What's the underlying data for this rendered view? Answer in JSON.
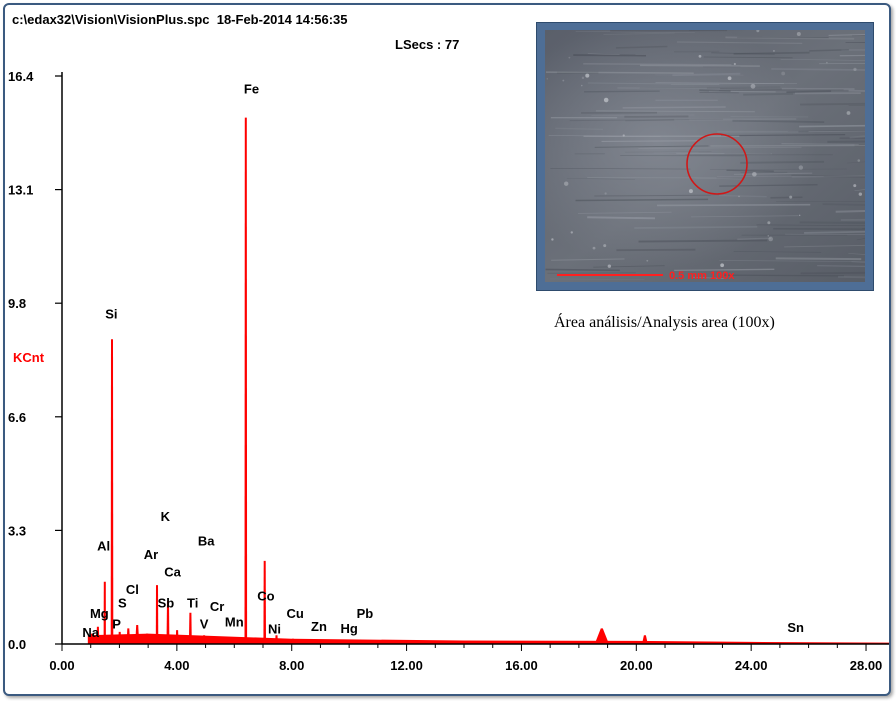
{
  "header": {
    "file_info": "c:\\edax32\\Vision\\VisionPlus.spc  18-Feb-2014 14:56:35",
    "lsecs": "LSecs : 77"
  },
  "inset": {
    "scale_text": "0.5 mm  100x",
    "caption": "Área análisis/Analysis area (100x)"
  },
  "colors": {
    "spectrum": "#ff0000",
    "frame": "#3b5a80",
    "axis": "#000000"
  },
  "chart_data": {
    "type": "bar",
    "ylabel": "KCnt",
    "xlim": [
      0,
      28.8
    ],
    "ylim": [
      0,
      16.4
    ],
    "y_ticks": [
      "0.0",
      "3.3",
      "6.6",
      "9.8",
      "13.1",
      "16.4"
    ],
    "x_ticks": [
      "0.00",
      "4.00",
      "8.00",
      "12.00",
      "16.00",
      "20.00",
      "24.00",
      "28.00"
    ],
    "peaks": [
      {
        "x": 1.04,
        "y": 0.3,
        "w": 0.05
      },
      {
        "x": 1.25,
        "y": 0.5,
        "w": 0.05
      },
      {
        "x": 1.49,
        "y": 1.8,
        "w": 0.04
      },
      {
        "x": 1.74,
        "y": 8.8,
        "w": 0.045
      },
      {
        "x": 2.01,
        "y": 0.35,
        "w": 0.05
      },
      {
        "x": 2.31,
        "y": 0.45,
        "w": 0.06
      },
      {
        "x": 2.62,
        "y": 0.55,
        "w": 0.07
      },
      {
        "x": 2.96,
        "y": 0.3,
        "w": 0.08
      },
      {
        "x": 3.31,
        "y": 1.7,
        "w": 0.045
      },
      {
        "x": 3.69,
        "y": 1.25,
        "w": 0.05
      },
      {
        "x": 4.01,
        "y": 0.4,
        "w": 0.05
      },
      {
        "x": 4.47,
        "y": 0.9,
        "w": 0.05
      },
      {
        "x": 4.95,
        "y": 0.25,
        "w": 0.05
      },
      {
        "x": 5.41,
        "y": 0.15,
        "w": 0.05
      },
      {
        "x": 5.9,
        "y": 0.2,
        "w": 0.05
      },
      {
        "x": 6.4,
        "y": 15.2,
        "w": 0.045
      },
      {
        "x": 7.06,
        "y": 2.4,
        "w": 0.045
      },
      {
        "x": 7.47,
        "y": 0.25,
        "w": 0.05
      },
      {
        "x": 8.04,
        "y": 0.15,
        "w": 0.05
      },
      {
        "x": 10.55,
        "y": 0.1,
        "w": 0.06
      },
      {
        "x": 14.2,
        "y": 0.08,
        "w": 0.2
      },
      {
        "x": 18.8,
        "y": 0.45,
        "w": 0.25
      },
      {
        "x": 20.3,
        "y": 0.25,
        "w": 0.1
      }
    ],
    "baseline": [
      {
        "x": 0.9,
        "y": 0.25
      },
      {
        "x": 3.0,
        "y": 0.3
      },
      {
        "x": 8.0,
        "y": 0.15
      },
      {
        "x": 14.0,
        "y": 0.1
      },
      {
        "x": 20.0,
        "y": 0.09
      },
      {
        "x": 24.0,
        "y": 0.06
      },
      {
        "x": 28.8,
        "y": 0.04
      }
    ],
    "element_labels": [
      {
        "label": "Fe",
        "x": 6.6,
        "y": 15.9
      },
      {
        "label": "Si",
        "x": 1.72,
        "y": 9.4
      },
      {
        "label": "K",
        "x": 3.6,
        "y": 3.55
      },
      {
        "label": "Ba",
        "x": 5.02,
        "y": 2.85
      },
      {
        "label": "Al",
        "x": 1.45,
        "y": 2.7
      },
      {
        "label": "Ar",
        "x": 3.1,
        "y": 2.45
      },
      {
        "label": "Ca",
        "x": 3.85,
        "y": 1.95
      },
      {
        "label": "Cl",
        "x": 2.45,
        "y": 1.45
      },
      {
        "label": "Sb",
        "x": 3.62,
        "y": 1.05
      },
      {
        "label": "Ti",
        "x": 4.55,
        "y": 1.05
      },
      {
        "label": "Cr",
        "x": 5.4,
        "y": 0.95
      },
      {
        "label": "Co",
        "x": 7.1,
        "y": 1.25
      },
      {
        "label": "Cu",
        "x": 8.12,
        "y": 0.75
      },
      {
        "label": "Pb",
        "x": 10.55,
        "y": 0.75
      },
      {
        "label": "S",
        "x": 2.1,
        "y": 1.05
      },
      {
        "label": "Mg",
        "x": 1.3,
        "y": 0.75
      },
      {
        "label": "P",
        "x": 1.9,
        "y": 0.45
      },
      {
        "label": "V",
        "x": 4.95,
        "y": 0.45
      },
      {
        "label": "Mn",
        "x": 6.0,
        "y": 0.5
      },
      {
        "label": "Ni",
        "x": 7.4,
        "y": 0.3
      },
      {
        "label": "Zn",
        "x": 8.95,
        "y": 0.38
      },
      {
        "label": "Hg",
        "x": 10.0,
        "y": 0.32
      },
      {
        "label": "Na",
        "x": 1.0,
        "y": 0.2
      },
      {
        "label": "Sn",
        "x": 25.55,
        "y": 0.35
      }
    ]
  }
}
